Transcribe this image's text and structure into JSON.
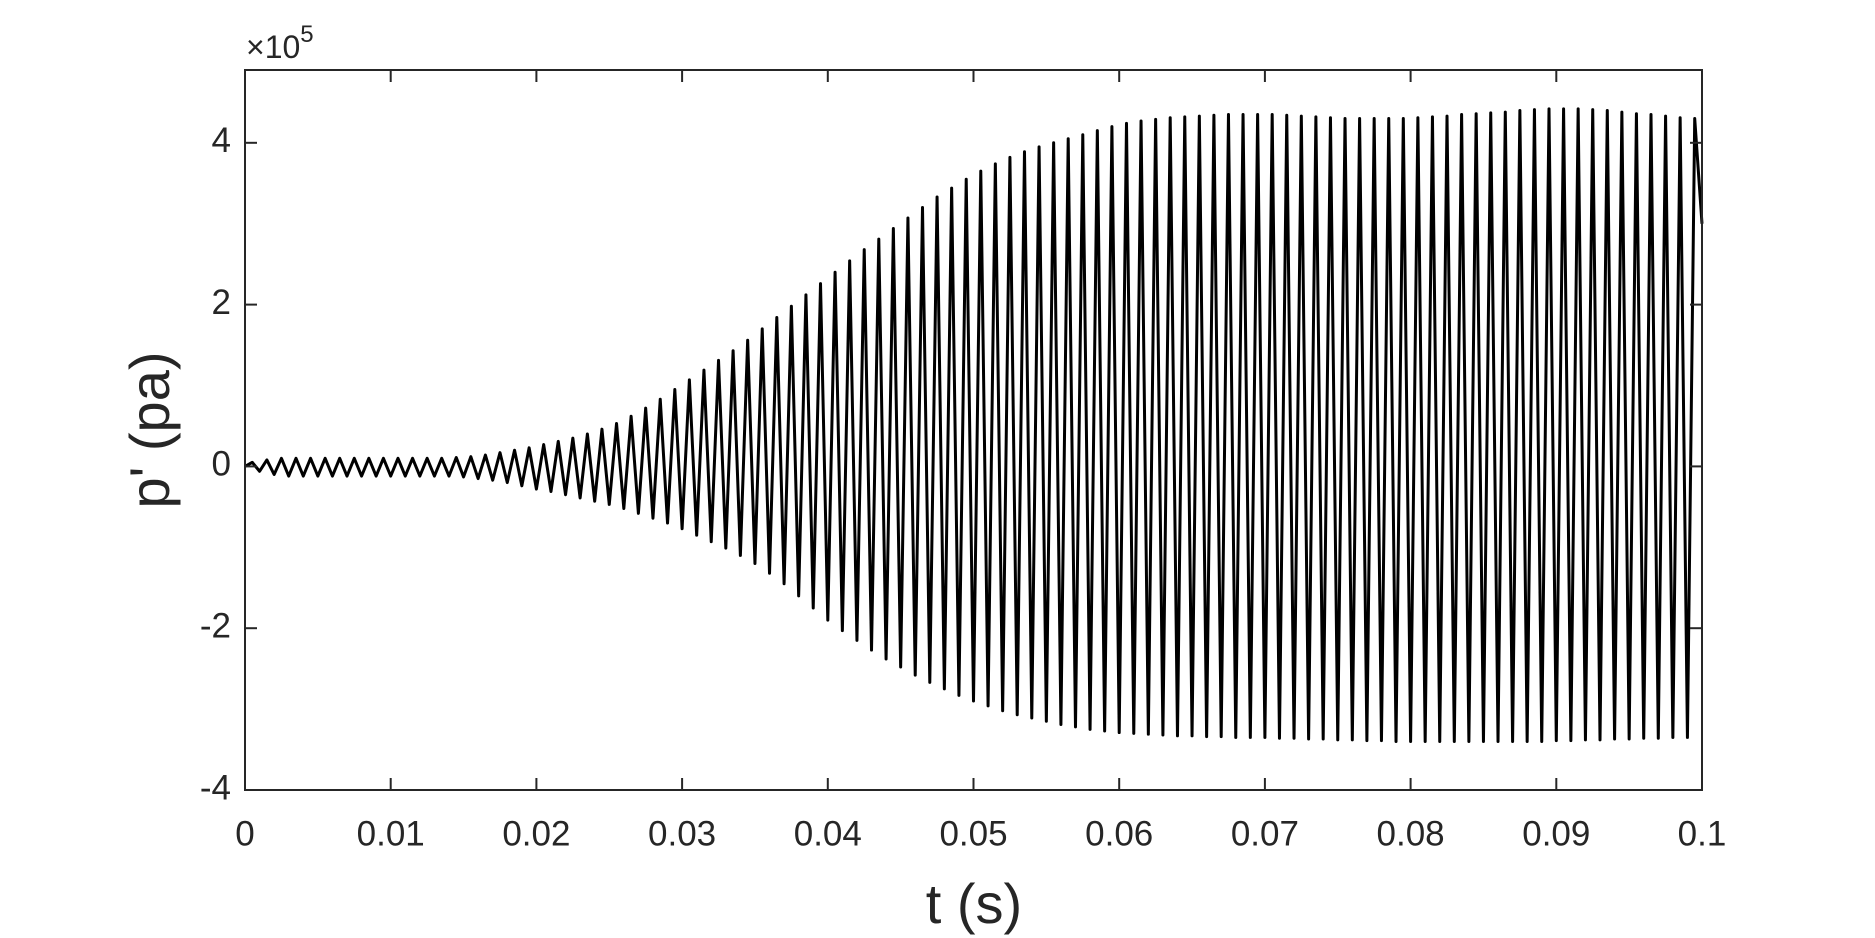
{
  "chart_data": {
    "type": "line",
    "xlabel": "t (s)",
    "ylabel": "p' (pa)",
    "y_multiplier": {
      "base": "×10",
      "exponent": "5"
    },
    "color": "#000000",
    "xlim": [
      0,
      0.1
    ],
    "xticks": [
      0,
      0.01,
      0.02,
      0.03,
      0.04,
      0.05,
      0.06,
      0.07,
      0.08,
      0.09,
      0.1
    ],
    "ylim": [
      -4,
      4.9
    ],
    "yticks": [
      -4,
      -2,
      0,
      2,
      4
    ],
    "grid": false,
    "box": true,
    "x": [
      0,
      0.0005,
      0.001,
      0.0015,
      0.002,
      0.0025,
      0.003,
      0.0035,
      0.004,
      0.0045,
      0.005,
      0.0055,
      0.006,
      0.0065,
      0.007,
      0.0075,
      0.008,
      0.0085,
      0.009,
      0.0095,
      0.01,
      0.0105,
      0.011,
      0.0115,
      0.012,
      0.0125,
      0.013,
      0.0135,
      0.014,
      0.0145,
      0.015,
      0.0155,
      0.016,
      0.0165,
      0.017,
      0.0175,
      0.018,
      0.0185,
      0.019,
      0.0195,
      0.02,
      0.0205,
      0.021,
      0.0215,
      0.022,
      0.0225,
      0.023,
      0.0235,
      0.024,
      0.0245,
      0.025,
      0.0255,
      0.026,
      0.0265,
      0.027,
      0.0275,
      0.028,
      0.0285,
      0.029,
      0.0295,
      0.03,
      0.0305,
      0.031,
      0.0315,
      0.032,
      0.0325,
      0.033,
      0.0335,
      0.034,
      0.0345,
      0.035,
      0.0355,
      0.036,
      0.0365,
      0.037,
      0.0375,
      0.038,
      0.0385,
      0.039,
      0.0395,
      0.04,
      0.0405,
      0.041,
      0.0415,
      0.042,
      0.0425,
      0.043,
      0.0435,
      0.044,
      0.0445,
      0.045,
      0.0455,
      0.046,
      0.0465,
      0.047,
      0.0475,
      0.048,
      0.0485,
      0.049,
      0.0495,
      0.05,
      0.0505,
      0.051,
      0.0515,
      0.052,
      0.0525,
      0.053,
      0.0535,
      0.054,
      0.0545,
      0.055,
      0.0555,
      0.056,
      0.0565,
      0.057,
      0.0575,
      0.058,
      0.0585,
      0.059,
      0.0595,
      0.06,
      0.0605,
      0.061,
      0.0615,
      0.062,
      0.0625,
      0.063,
      0.0635,
      0.064,
      0.0645,
      0.065,
      0.0655,
      0.066,
      0.0665,
      0.067,
      0.0675,
      0.068,
      0.0685,
      0.069,
      0.0695,
      0.07,
      0.0705,
      0.071,
      0.0715,
      0.072,
      0.0725,
      0.073,
      0.0735,
      0.074,
      0.0745,
      0.075,
      0.0755,
      0.076,
      0.0765,
      0.077,
      0.0775,
      0.078,
      0.0785,
      0.079,
      0.0795,
      0.08,
      0.0805,
      0.081,
      0.0815,
      0.082,
      0.0825,
      0.083,
      0.0835,
      0.084,
      0.0845,
      0.085,
      0.0855,
      0.086,
      0.0865,
      0.087,
      0.0875,
      0.088,
      0.0885,
      0.089,
      0.0895,
      0.09,
      0.0905,
      0.091,
      0.0915,
      0.092,
      0.0925,
      0.093,
      0.0935,
      0.094,
      0.0945,
      0.095,
      0.0955,
      0.096,
      0.0965,
      0.097,
      0.0975,
      0.098,
      0.0985,
      0.099,
      0.0995,
      0.1
    ],
    "values": [
      0,
      0.05,
      -0.06,
      0.08,
      -0.1,
      0.1,
      -0.12,
      0.1,
      -0.12,
      0.1,
      -0.12,
      0.1,
      -0.12,
      0.1,
      -0.12,
      0.1,
      -0.12,
      0.1,
      -0.12,
      0.1,
      -0.12,
      0.1,
      -0.12,
      0.1,
      -0.12,
      0.1,
      -0.12,
      0.1,
      -0.12,
      0.11,
      -0.13,
      0.12,
      -0.15,
      0.14,
      -0.17,
      0.17,
      -0.2,
      0.2,
      -0.24,
      0.23,
      -0.28,
      0.27,
      -0.31,
      0.31,
      -0.35,
      0.35,
      -0.39,
      0.4,
      -0.43,
      0.46,
      -0.47,
      0.53,
      -0.52,
      0.62,
      -0.58,
      0.72,
      -0.64,
      0.83,
      -0.7,
      0.95,
      -0.77,
      1.07,
      -0.85,
      1.19,
      -0.93,
      1.31,
      -1.01,
      1.43,
      -1.1,
      1.56,
      -1.2,
      1.7,
      -1.32,
      1.84,
      -1.45,
      1.98,
      -1.6,
      2.12,
      -1.75,
      2.26,
      -1.9,
      2.4,
      -2.03,
      2.54,
      -2.15,
      2.68,
      -2.27,
      2.81,
      -2.38,
      2.94,
      -2.48,
      3.07,
      -2.58,
      3.2,
      -2.67,
      3.33,
      -2.75,
      3.44,
      -2.83,
      3.55,
      -2.9,
      3.65,
      -2.96,
      3.74,
      -3.02,
      3.82,
      -3.07,
      3.89,
      -3.11,
      3.95,
      -3.15,
      4.0,
      -3.19,
      4.05,
      -3.22,
      4.1,
      -3.25,
      4.15,
      -3.27,
      4.2,
      -3.29,
      4.24,
      -3.3,
      4.27,
      -3.31,
      4.29,
      -3.32,
      4.31,
      -3.33,
      4.32,
      -3.33,
      4.33,
      -3.34,
      4.34,
      -3.34,
      4.35,
      -3.35,
      4.35,
      -3.35,
      4.35,
      -3.35,
      4.35,
      -3.36,
      4.34,
      -3.36,
      4.33,
      -3.37,
      4.32,
      -3.37,
      4.31,
      -3.38,
      4.3,
      -3.38,
      4.3,
      -3.39,
      4.3,
      -3.39,
      4.3,
      -3.4,
      4.3,
      -3.4,
      4.31,
      -3.4,
      4.32,
      -3.4,
      4.33,
      -3.4,
      4.35,
      -3.4,
      4.36,
      -3.4,
      4.37,
      -3.4,
      4.38,
      -3.4,
      4.4,
      -3.4,
      4.41,
      -3.4,
      4.42,
      -3.39,
      4.42,
      -3.39,
      4.42,
      -3.38,
      4.41,
      -3.38,
      4.4,
      -3.37,
      4.38,
      -3.37,
      4.36,
      -3.36,
      4.35,
      -3.36,
      4.33,
      -3.35,
      4.31,
      -3.35,
      4.3,
      3.0
    ]
  }
}
